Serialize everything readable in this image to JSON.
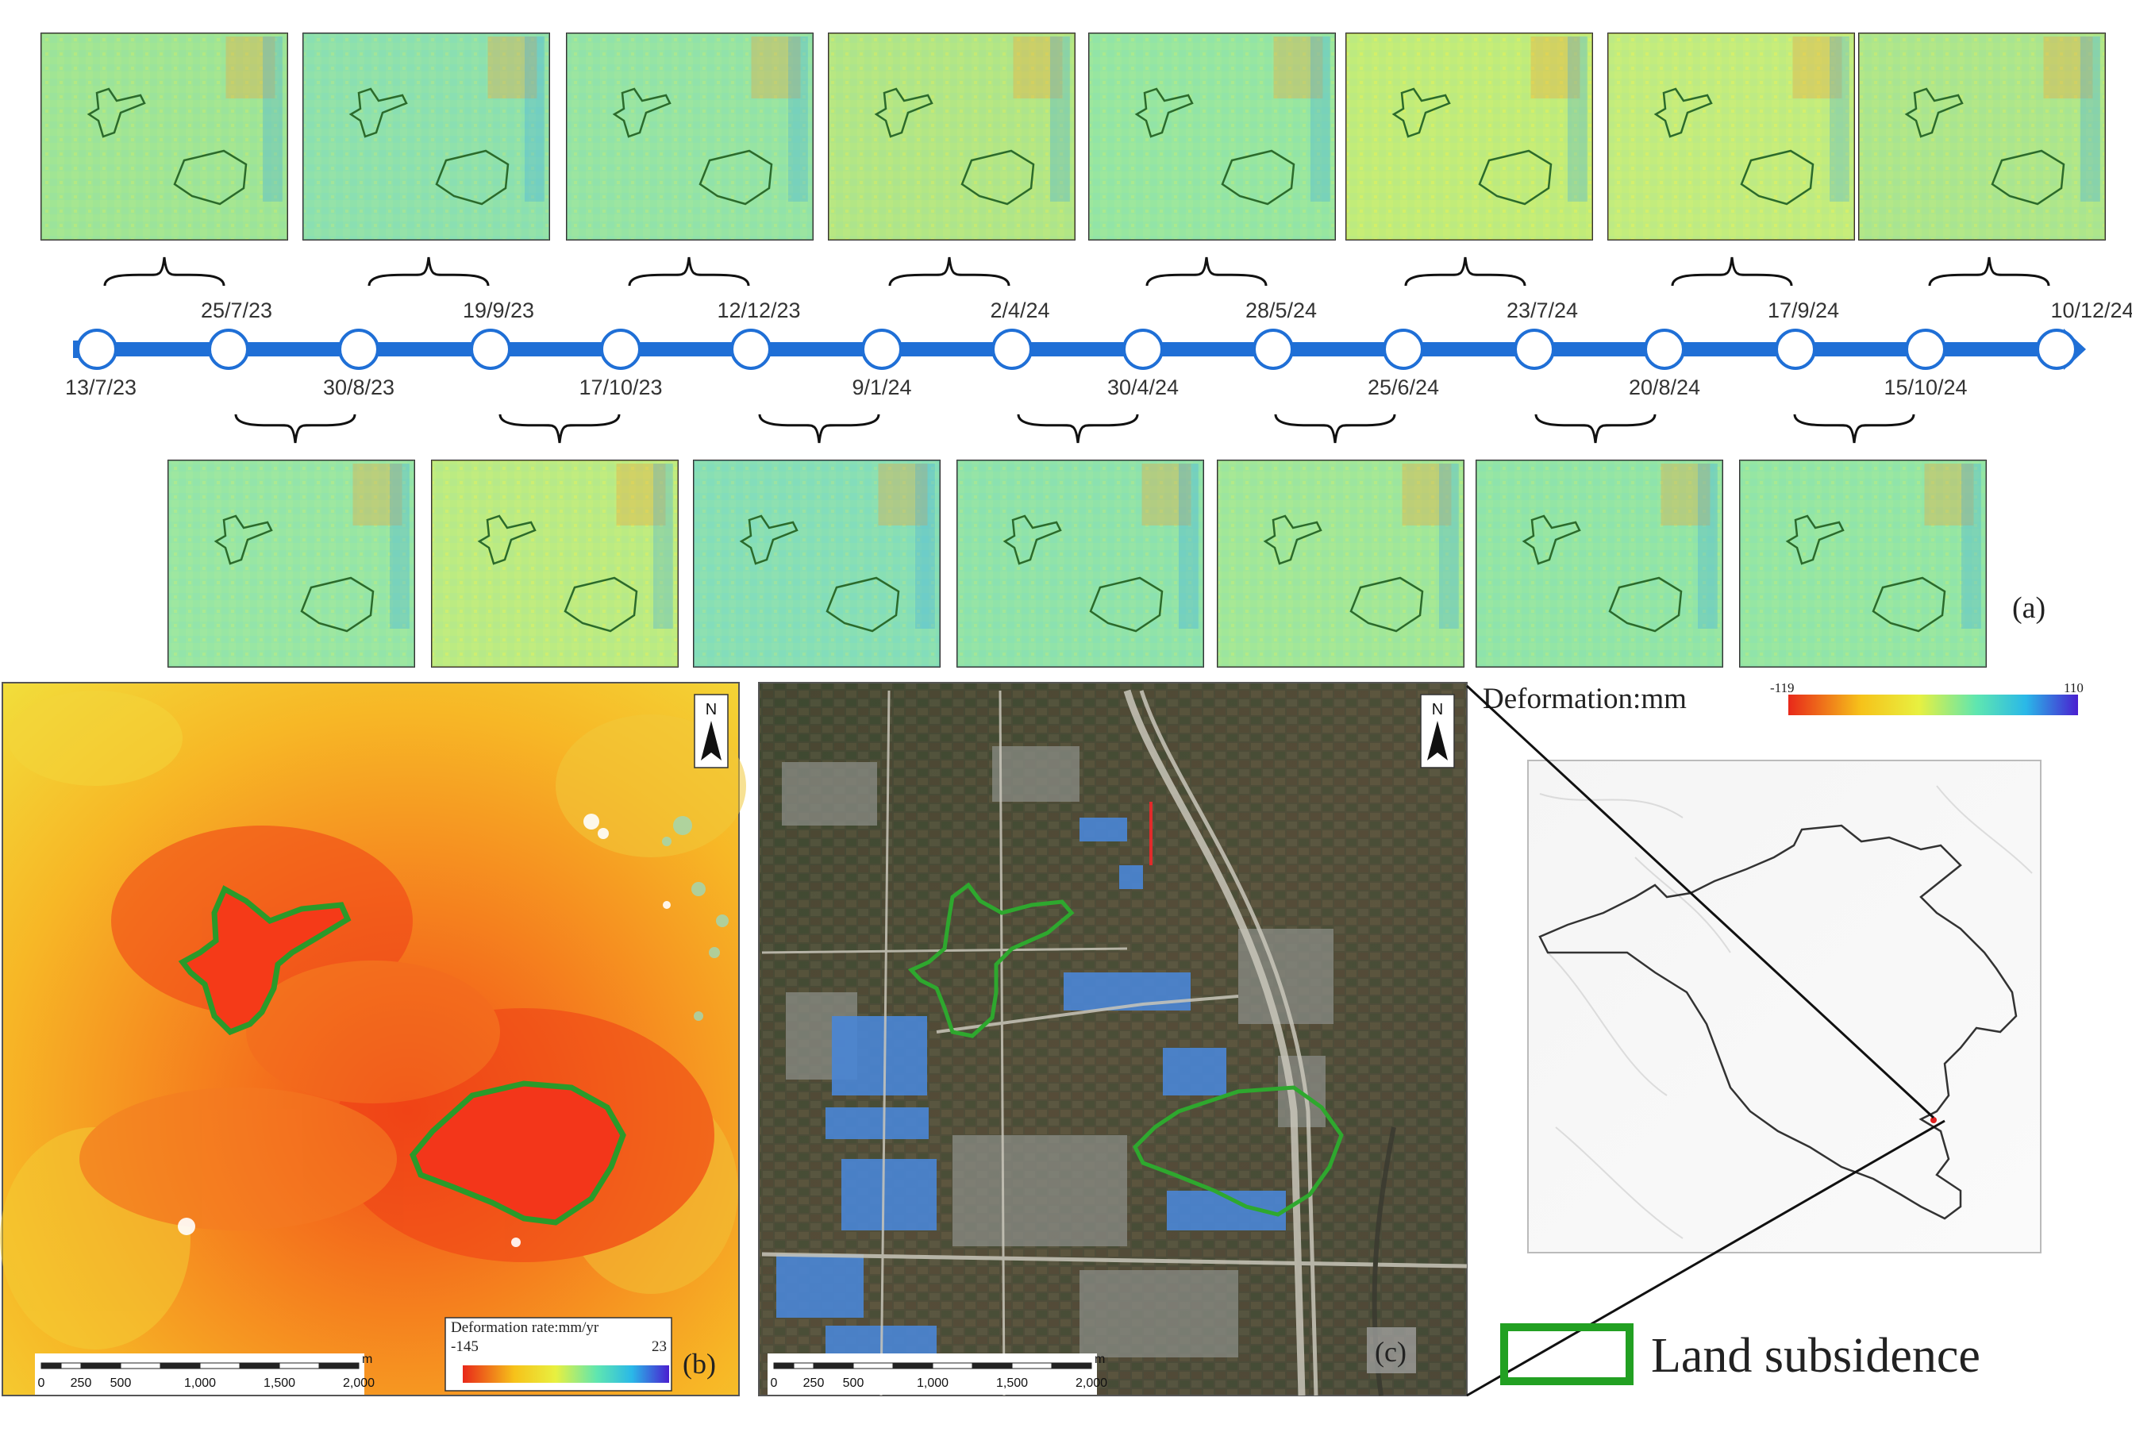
{
  "timeline": {
    "dates_above": [
      "25/7/23",
      "19/9/23",
      "12/12/23",
      "2/4/24",
      "28/5/24",
      "23/7/24",
      "17/9/24",
      "10/12/24"
    ],
    "dates_below": [
      "13/7/23",
      "30/8/23",
      "17/10/23",
      "9/1/24",
      "30/4/24",
      "25/6/24",
      "20/8/24",
      "15/10/24"
    ]
  },
  "panel_labels": {
    "a": "(a)",
    "b": "(b)",
    "c": "(c)"
  },
  "deformation_legend": {
    "title": "Deformation:mm",
    "min": "-119",
    "max": "110"
  },
  "rate_legend": {
    "title": "Deformation rate:mm/yr",
    "min": "-145",
    "max": "23"
  },
  "scalebar": {
    "unit": "m",
    "ticks": [
      "0",
      "250",
      "500",
      "1,000",
      "1,500",
      "2,000"
    ]
  },
  "north_label": "N",
  "legend": {
    "land_subsidence": "Land subsidence"
  },
  "colors": {
    "timeline": "#1f6fd6",
    "subsidence_outline": "#2a9a2a",
    "legend_box": "#22a022",
    "scale_low": "#e8281a",
    "scale_high": "#4a1fd0"
  }
}
